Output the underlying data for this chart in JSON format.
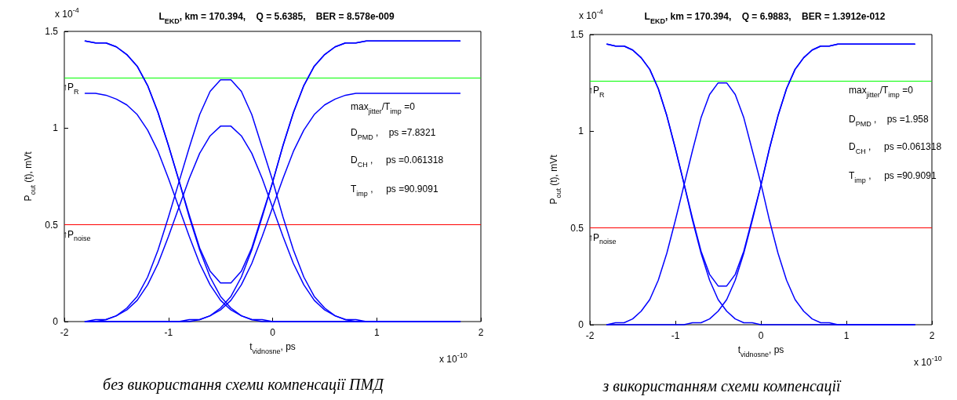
{
  "chart_data": [
    {
      "type": "line",
      "title": "L$_{EKD}$, km = 170.394,    Q = 5.6385,    BER = 8.578e-009",
      "xlabel": "t$_{vidnosne}$, ps",
      "ylabel": "P$_{out}$ (t), mVt",
      "marker": "none",
      "line_style": "solid",
      "x": [
        -1.8,
        -1.7,
        -1.6,
        -1.5,
        -1.4,
        -1.3,
        -1.2,
        -1.1,
        -1.0,
        -0.9,
        -0.8,
        -0.7,
        -0.6,
        -0.5,
        -0.4,
        -0.3,
        -0.2,
        -0.1,
        0,
        0.1,
        0.2,
        0.3,
        0.4,
        0.5,
        0.6,
        0.7,
        0.8,
        0.9,
        1.0,
        1.1,
        1.2,
        1.3,
        1.4,
        1.5,
        1.6,
        1.7,
        1.8
      ],
      "xlim": [
        -2,
        2
      ],
      "xticks": [
        -2,
        -1,
        0,
        1,
        2
      ],
      "ylim": [
        0,
        1.5
      ],
      "yticks": [
        0,
        0.5,
        1,
        1.5
      ],
      "series": [
        {
          "color": "#0000ff",
          "values": [
            1.45,
            1.44,
            1.44,
            1.42,
            1.38,
            1.32,
            1.22,
            1.08,
            0.91,
            0.73,
            0.54,
            0.37,
            0.23,
            0.13,
            0.07,
            0.03,
            0.01,
            0.01,
            0,
            0,
            0,
            0,
            0,
            0,
            0,
            0,
            0,
            0,
            0,
            0,
            0,
            0,
            0,
            0,
            0,
            0,
            0
          ]
        },
        {
          "color": "#0000ff",
          "values": [
            0,
            0,
            0,
            0,
            0,
            0,
            0,
            0,
            0,
            0,
            0.01,
            0.01,
            0.03,
            0.07,
            0.13,
            0.23,
            0.37,
            0.54,
            0.72,
            0.91,
            1.08,
            1.22,
            1.32,
            1.38,
            1.42,
            1.44,
            1.44,
            1.45,
            1.45,
            1.45,
            1.45,
            1.45,
            1.45,
            1.45,
            1.45,
            1.45,
            1.45
          ]
        },
        {
          "color": "#0000ff",
          "values": [
            0,
            0.01,
            0.01,
            0.03,
            0.07,
            0.13,
            0.23,
            0.37,
            0.54,
            0.72,
            0.9,
            1.07,
            1.19,
            1.25,
            1.25,
            1.19,
            1.07,
            0.9,
            0.73,
            0.54,
            0.37,
            0.23,
            0.13,
            0.07,
            0.03,
            0.01,
            0.01,
            0,
            0,
            0,
            0,
            0,
            0,
            0,
            0,
            0,
            0
          ]
        },
        {
          "color": "#0000ff",
          "values": [
            1.45,
            1.44,
            1.44,
            1.42,
            1.38,
            1.32,
            1.22,
            1.08,
            0.91,
            0.73,
            0.55,
            0.38,
            0.26,
            0.2,
            0.2,
            0.26,
            0.38,
            0.55,
            0.72,
            0.91,
            1.08,
            1.22,
            1.32,
            1.38,
            1.42,
            1.44,
            1.44,
            1.45,
            1.45,
            1.45,
            1.45,
            1.45,
            1.45,
            1.45,
            1.45,
            1.45,
            1.45
          ]
        },
        {
          "color": "#0000ff",
          "values": [
            1.18,
            1.18,
            1.17,
            1.15,
            1.12,
            1.07,
            0.99,
            0.88,
            0.74,
            0.59,
            0.44,
            0.3,
            0.19,
            0.11,
            0.06,
            0.03,
            0.01,
            0,
            0,
            0,
            0,
            0,
            0,
            0,
            0,
            0,
            0,
            0,
            0,
            0,
            0,
            0,
            0,
            0,
            0,
            0,
            0
          ]
        },
        {
          "color": "#0000ff",
          "values": [
            0,
            0,
            0,
            0,
            0,
            0,
            0,
            0,
            0,
            0,
            0,
            0.01,
            0.03,
            0.06,
            0.11,
            0.19,
            0.3,
            0.44,
            0.59,
            0.74,
            0.88,
            0.99,
            1.07,
            1.12,
            1.15,
            1.17,
            1.18,
            1.18,
            1.18,
            1.18,
            1.18,
            1.18,
            1.18,
            1.18,
            1.18,
            1.18,
            1.18
          ]
        },
        {
          "color": "#0000ff",
          "values": [
            0,
            0,
            0.01,
            0.03,
            0.06,
            0.11,
            0.19,
            0.3,
            0.44,
            0.59,
            0.74,
            0.87,
            0.96,
            1.01,
            1.01,
            0.96,
            0.87,
            0.74,
            0.59,
            0.44,
            0.3,
            0.19,
            0.11,
            0.06,
            0.03,
            0.01,
            0,
            0,
            0,
            0,
            0,
            0,
            0,
            0,
            0,
            0,
            0
          ]
        }
      ],
      "ref_lines": [
        {
          "axis": "y",
          "value": 1.26,
          "label": "↑P$_{R}$",
          "color": "#00ff00"
        },
        {
          "axis": "y",
          "value": 0.5,
          "label": "↑P$_{noise}$",
          "color": "#ff0000"
        }
      ],
      "annotations": [
        "x 10$^{-4}$",
        "x 10$^{-10}$",
        "max$_{jitter}$/T$_{imp}$ =0",
        "D$_{PMD}$ ,    ps =7.8321",
        "D$_{CH}$ ,     ps =0.061318",
        "T$_{imp}$ ,     ps =90.9091",
        "без використання схеми компенсації ПМД"
      ]
    },
    {
      "type": "line",
      "title": "L$_{EKD}$, km = 170.394,    Q = 6.9883,    BER = 1.3912e-012",
      "xlabel": "t$_{vidnosne}$, ps",
      "ylabel": "P$_{out}$ (t), mVt",
      "marker": "none",
      "line_style": "solid",
      "x": [
        -1.8,
        -1.7,
        -1.6,
        -1.5,
        -1.4,
        -1.3,
        -1.2,
        -1.1,
        -1.0,
        -0.9,
        -0.8,
        -0.7,
        -0.6,
        -0.5,
        -0.4,
        -0.3,
        -0.2,
        -0.1,
        0,
        0.1,
        0.2,
        0.3,
        0.4,
        0.5,
        0.6,
        0.7,
        0.8,
        0.9,
        1.0,
        1.1,
        1.2,
        1.3,
        1.4,
        1.5,
        1.6,
        1.7,
        1.8
      ],
      "xlim": [
        -2,
        2
      ],
      "xticks": [
        -2,
        -1,
        0,
        1,
        2
      ],
      "ylim": [
        0,
        1.5
      ],
      "yticks": [
        0,
        0.5,
        1,
        1.5
      ],
      "series": [
        {
          "color": "#0000ff",
          "values": [
            1.45,
            1.44,
            1.44,
            1.42,
            1.38,
            1.32,
            1.22,
            1.08,
            0.91,
            0.73,
            0.54,
            0.37,
            0.23,
            0.13,
            0.07,
            0.03,
            0.01,
            0.01,
            0,
            0,
            0,
            0,
            0,
            0,
            0,
            0,
            0,
            0,
            0,
            0,
            0,
            0,
            0,
            0,
            0,
            0,
            0
          ]
        },
        {
          "color": "#0000ff",
          "values": [
            0,
            0,
            0,
            0,
            0,
            0,
            0,
            0,
            0,
            0,
            0.01,
            0.01,
            0.03,
            0.07,
            0.13,
            0.23,
            0.37,
            0.54,
            0.72,
            0.91,
            1.08,
            1.22,
            1.32,
            1.38,
            1.42,
            1.44,
            1.44,
            1.45,
            1.45,
            1.45,
            1.45,
            1.45,
            1.45,
            1.45,
            1.45,
            1.45,
            1.45
          ]
        },
        {
          "color": "#0000ff",
          "values": [
            0,
            0.01,
            0.01,
            0.03,
            0.07,
            0.13,
            0.23,
            0.37,
            0.54,
            0.72,
            0.9,
            1.07,
            1.19,
            1.25,
            1.25,
            1.19,
            1.07,
            0.9,
            0.73,
            0.54,
            0.37,
            0.23,
            0.13,
            0.07,
            0.03,
            0.01,
            0.01,
            0,
            0,
            0,
            0,
            0,
            0,
            0,
            0,
            0,
            0
          ]
        },
        {
          "color": "#0000ff",
          "values": [
            1.45,
            1.44,
            1.44,
            1.42,
            1.38,
            1.32,
            1.22,
            1.08,
            0.91,
            0.73,
            0.55,
            0.38,
            0.26,
            0.2,
            0.2,
            0.26,
            0.38,
            0.55,
            0.72,
            0.91,
            1.08,
            1.22,
            1.32,
            1.38,
            1.42,
            1.44,
            1.44,
            1.45,
            1.45,
            1.45,
            1.45,
            1.45,
            1.45,
            1.45,
            1.45,
            1.45,
            1.45
          ]
        }
      ],
      "ref_lines": [
        {
          "axis": "y",
          "value": 1.26,
          "label": "↑P$_{R}$",
          "color": "#00ff00"
        },
        {
          "axis": "y",
          "value": 0.5,
          "label": "↑P$_{noise}$",
          "color": "#ff0000"
        }
      ],
      "annotations": [
        "x 10$^{-4}$",
        "x 10$^{-10}$",
        "max$_{jitter}$/T$_{imp}$ =0",
        "D$_{PMD}$ ,    ps =1.958",
        "D$_{CH}$ ,     ps =0.061318",
        "T$_{imp}$ ,     ps =90.9091",
        "з використанням схеми компенсації"
      ]
    }
  ]
}
